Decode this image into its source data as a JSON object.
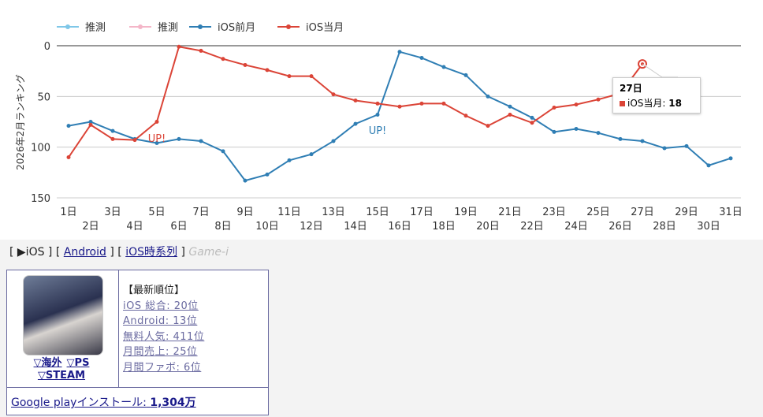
{
  "chart_data": {
    "type": "line",
    "y_label": "2026年2月ランキング",
    "categories": [
      "1日",
      "2日",
      "3日",
      "4日",
      "5日",
      "6日",
      "7日",
      "8日",
      "9日",
      "10日",
      "11日",
      "12日",
      "13日",
      "14日",
      "15日",
      "16日",
      "17日",
      "18日",
      "19日",
      "20日",
      "21日",
      "22日",
      "23日",
      "24日",
      "25日",
      "26日",
      "27日",
      "28日",
      "29日",
      "30日",
      "31日"
    ],
    "series": [
      {
        "name": "推測",
        "color": "#7fc7e8",
        "values": [
          null,
          null,
          null,
          null,
          null,
          null,
          null,
          null,
          null,
          null,
          null,
          null,
          null,
          null,
          null,
          null,
          null,
          null,
          null,
          null,
          null,
          null,
          null,
          null,
          null,
          null,
          null,
          null,
          null,
          null,
          null
        ]
      },
      {
        "name": "推測",
        "color": "#f4b6c8",
        "values": [
          null,
          null,
          null,
          null,
          null,
          null,
          null,
          null,
          null,
          null,
          null,
          null,
          null,
          null,
          null,
          null,
          null,
          null,
          null,
          null,
          null,
          null,
          null,
          null,
          null,
          null,
          null,
          null,
          null,
          null,
          null
        ]
      },
      {
        "name": "iOS前月",
        "color": "#2f7eb4",
        "values": [
          79,
          75,
          84,
          92,
          96,
          92,
          94,
          104,
          133,
          127,
          113,
          107,
          94,
          77,
          68,
          6,
          12,
          21,
          29,
          50,
          60,
          71,
          85,
          82,
          86,
          92,
          94,
          101,
          99,
          118,
          111
        ]
      },
      {
        "name": "iOS当月",
        "color": "#db4437",
        "values": [
          110,
          78,
          92,
          93,
          75,
          1,
          5,
          13,
          19,
          24,
          30,
          30,
          48,
          54,
          57,
          60,
          57,
          57,
          69,
          79,
          68,
          76,
          61,
          58,
          53,
          47,
          18,
          null,
          null,
          null,
          null
        ]
      }
    ],
    "ylim": [
      0,
      150
    ],
    "yticks": [
      0,
      50,
      100,
      150
    ],
    "y_reversed": true,
    "grid": true,
    "annotations": [
      "UP!",
      "UP!"
    ]
  },
  "nav": {
    "items": [
      {
        "text": "[ ▶iOS ]",
        "link": false
      },
      {
        "text": "[",
        "link": false
      },
      {
        "text": "Android",
        "link": true
      },
      {
        "text": "] [",
        "link": false
      },
      {
        "text": "iOS時系列",
        "link": true
      },
      {
        "text": "]",
        "link": false
      },
      {
        "text": "Game-i",
        "link": false,
        "muted": true
      }
    ]
  },
  "card": {
    "links": [
      "▽海外",
      "▽PS",
      "▽STEAM"
    ],
    "ranking_title": "【最新順位】",
    "rankings": [
      "iOS 総合: 20位",
      "Android: 13位",
      "無料人気: 411位",
      "月間売上: 25位",
      "月間ファボ: 6位"
    ],
    "install_label": "Google playインストール:",
    "install_value": "1,304万"
  }
}
